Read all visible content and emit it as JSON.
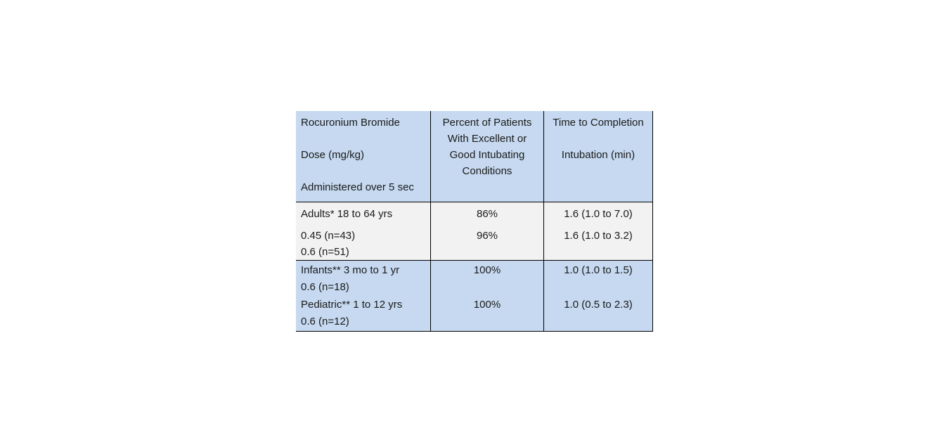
{
  "colors": {
    "header_bg": "#c6d9f0",
    "adult_row_bg": "#f2f2f2",
    "pediatric_row_bg": "#c6d9f0",
    "border": "#000000",
    "text": "#1a1a1a",
    "page_bg": "#ffffff"
  },
  "table": {
    "header": {
      "col1": {
        "line1": "Rocuronium Bromide",
        "line2": "Dose (mg/kg)",
        "line3": "Administered over 5 sec"
      },
      "col2": {
        "line1": "Percent of Patients",
        "line2": "With Excellent or",
        "line3": "Good Intubating",
        "line4": "Conditions"
      },
      "col3": {
        "line1": "Time to Completion",
        "line2": "Intubation (min)"
      }
    },
    "adults": {
      "group": "Adults* 18 to 64 yrs",
      "dose1": "0.45 (n=43)",
      "dose2": "0.6 (n=51)",
      "percent1": "86%",
      "percent2": "96%",
      "time1": "1.6 (1.0 to 7.0)",
      "time2": "1.6 (1.0 to 3.2)"
    },
    "pediatric": {
      "group1": "Infants** 3 mo to 1 yr",
      "dose1": "0.6 (n=18)",
      "group2": "Pediatric** 1 to 12 yrs",
      "dose2": "0.6 (n=12)",
      "percent1": "100%",
      "percent2": "100%",
      "time1": "1.0 (1.0 to 1.5)",
      "time2": "1.0 (0.5 to 2.3)"
    }
  }
}
